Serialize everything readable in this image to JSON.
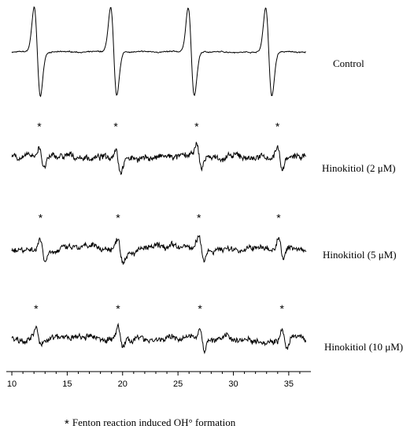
{
  "chart_data": {
    "type": "line",
    "x_ticks": [
      10,
      15,
      20,
      25,
      30,
      35
    ],
    "xlim": [
      9.5,
      37
    ],
    "marker_symbol": "*",
    "series": [
      {
        "name": "Control",
        "peaks": [
          12.3,
          19.2,
          26.2,
          33.2
        ],
        "amplitude": 2.6,
        "noise": 0.08,
        "pattern": "derivative"
      },
      {
        "name": "Hinokitiol (2 μM)",
        "peaks": [
          12.7,
          19.6,
          26.9,
          34.2
        ],
        "amplitude": 0.8,
        "noise": 0.45,
        "pattern": "noisy"
      },
      {
        "name": "Hinokitiol (5 μM)",
        "peaks": [
          12.8,
          19.8,
          27.1,
          34.3
        ],
        "amplitude": 0.8,
        "noise": 0.45,
        "pattern": "noisy"
      },
      {
        "name": "Hinokitiol (10 μM)",
        "peaks": [
          12.4,
          19.8,
          27.2,
          34.6
        ],
        "amplitude": 0.7,
        "noise": 0.45,
        "pattern": "noisy"
      }
    ]
  },
  "footnote": {
    "symbol": "*",
    "text": "Fenton reaction induced OH° formation"
  }
}
